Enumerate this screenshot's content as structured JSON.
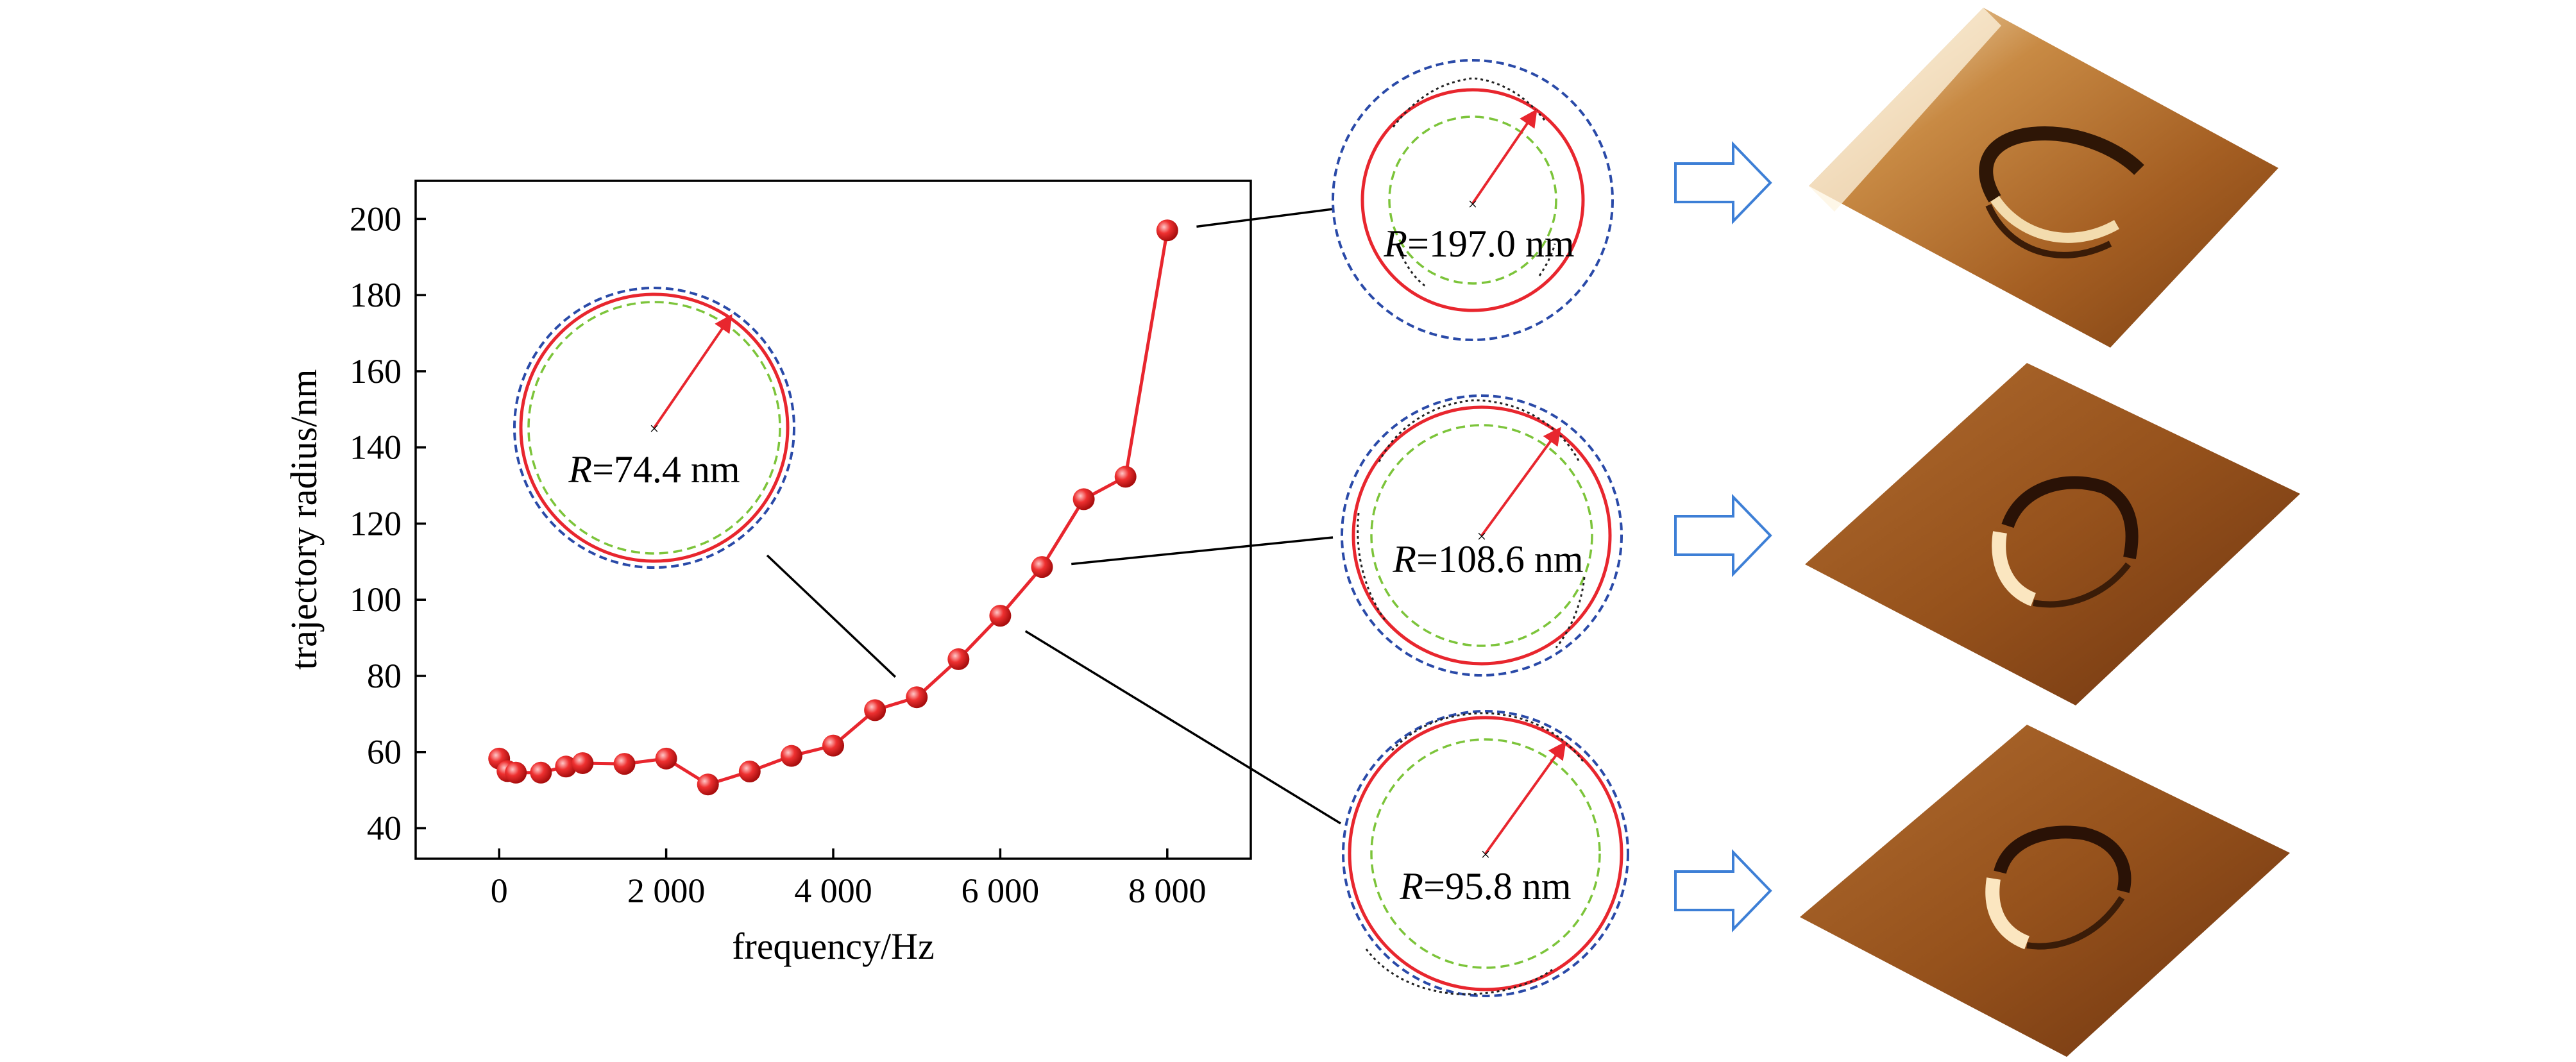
{
  "chart_data": {
    "type": "line",
    "xlabel": "frequency/Hz",
    "ylabel": "trajectory radius/nm",
    "xlim": [
      -1000,
      9000
    ],
    "ylim": [
      32,
      210
    ],
    "x_ticks": [
      0,
      2000,
      4000,
      6000,
      8000
    ],
    "x_tick_labels": [
      "0",
      "2 000",
      "4 000",
      "6 000",
      "8 000"
    ],
    "y_ticks": [
      40,
      60,
      80,
      100,
      120,
      140,
      160,
      180,
      200
    ],
    "y_tick_labels": [
      "40",
      "60",
      "80",
      "100",
      "120",
      "140",
      "160",
      "180",
      "200"
    ],
    "grid": false,
    "legend": "none",
    "series": [
      {
        "x": [
          0,
          100,
          200,
          500,
          800,
          1000,
          1500,
          2000,
          2500,
          3000,
          3500,
          4000,
          4500,
          5000,
          5500,
          6000,
          6500,
          7000,
          7500,
          8000
        ],
        "y": [
          58.3,
          55.0,
          54.6,
          54.6,
          56.2,
          57.1,
          56.9,
          58.3,
          51.5,
          54.9,
          59.0,
          61.7,
          71.0,
          74.4,
          84.4,
          95.8,
          108.6,
          126.4,
          132.3,
          197.0
        ],
        "color": "#e8262e"
      }
    ],
    "annotations": [
      {
        "label_italic": "R",
        "label_rest": "=74.4 nm",
        "point_index": 13
      },
      {
        "label_italic": "R",
        "label_rest": "=197.0 nm",
        "point_index": 19
      },
      {
        "label_italic": "R",
        "label_rest": "=108.6 nm",
        "point_index": 16
      },
      {
        "label_italic": "R",
        "label_rest": "=95.8 nm",
        "point_index": 15
      }
    ]
  },
  "colors": {
    "series": "#e8262e",
    "circle_outer": "#2a4aa8",
    "circle_fit": "#e8262e",
    "circle_inner": "#7cc43a",
    "arrow_outline": "#3d7fd6",
    "surface_dark": "#3a1c08",
    "surface_mid": "#9a5a22",
    "surface_light": "#f0d8a8"
  },
  "icons": [
    "right-arrow-icon"
  ]
}
